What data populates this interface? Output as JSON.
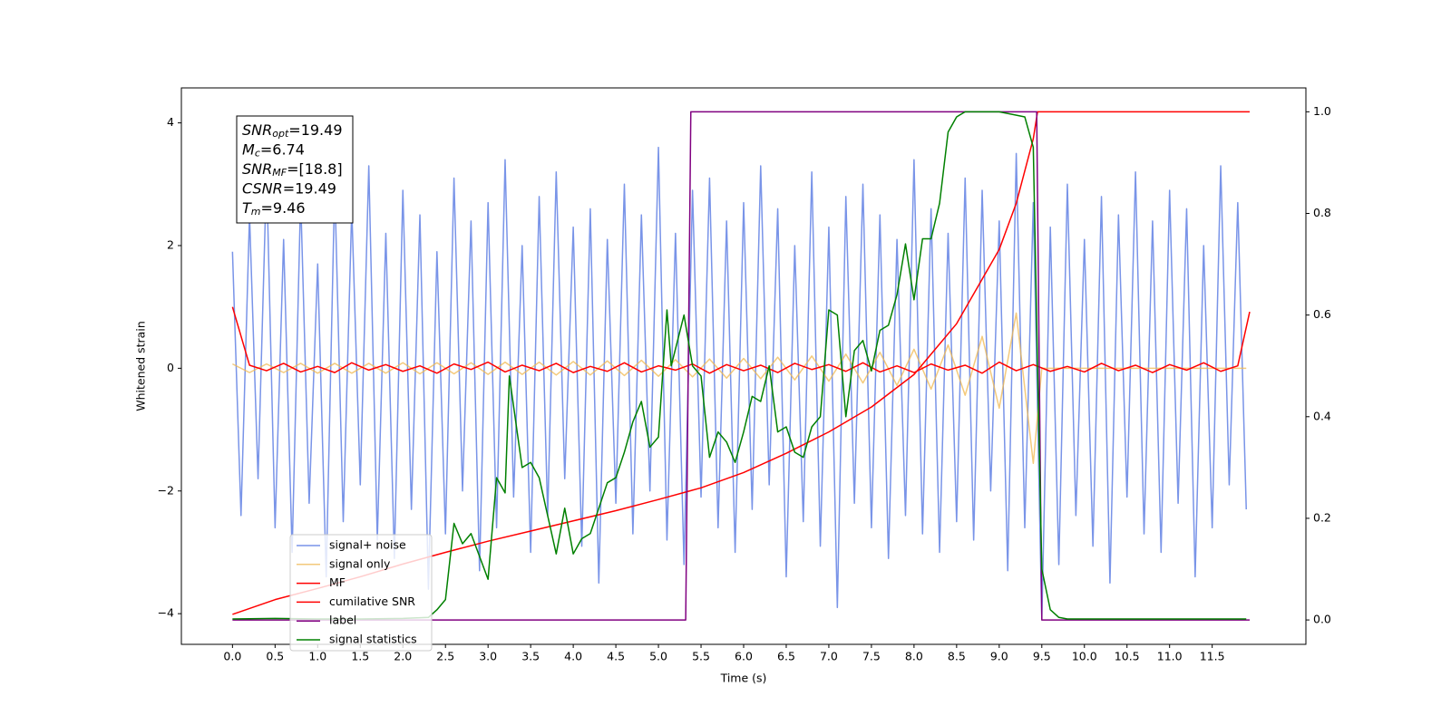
{
  "chart_data": {
    "type": "line",
    "xlabel": "Time (s)",
    "ylabel": "Whitened strain",
    "xlim": [
      -0.6,
      12.6
    ],
    "ylim": [
      -4.5,
      4.57
    ],
    "y2lim": [
      -0.048,
      1.047
    ],
    "xticks": [
      {
        "value": 0,
        "label": "0.0"
      },
      {
        "value": 0.5,
        "label": "0.5"
      },
      {
        "value": 1,
        "label": "1.0"
      },
      {
        "value": 1.5,
        "label": "1.5"
      },
      {
        "value": 2,
        "label": "2.0"
      },
      {
        "value": 2.5,
        "label": "2.5"
      },
      {
        "value": 3,
        "label": "3.0"
      },
      {
        "value": 3.5,
        "label": "3.5"
      },
      {
        "value": 4,
        "label": "4.0"
      },
      {
        "value": 4.5,
        "label": "4.5"
      },
      {
        "value": 5,
        "label": "5.0"
      },
      {
        "value": 5.5,
        "label": "5.5"
      },
      {
        "value": 6,
        "label": "6.0"
      },
      {
        "value": 6.5,
        "label": "6.5"
      },
      {
        "value": 7,
        "label": "7.0"
      },
      {
        "value": 7.5,
        "label": "7.5"
      },
      {
        "value": 8,
        "label": "8.0"
      },
      {
        "value": 8.5,
        "label": "8.5"
      },
      {
        "value": 9,
        "label": "9.0"
      },
      {
        "value": 9.5,
        "label": "9.5"
      },
      {
        "value": 10,
        "label": "10.0"
      },
      {
        "value": 10.5,
        "label": "10.5"
      },
      {
        "value": 11,
        "label": "11.0"
      },
      {
        "value": 11.5,
        "label": "11.5"
      }
    ],
    "yticks": [
      {
        "value": -4,
        "label": "−4"
      },
      {
        "value": -2,
        "label": "−2"
      },
      0,
      2,
      4
    ],
    "y2ticks": [
      {
        "value": 0,
        "label": "0.0"
      },
      {
        "value": 0.2,
        "label": "0.2"
      },
      {
        "value": 0.4,
        "label": "0.4"
      },
      {
        "value": 0.6,
        "label": "0.6"
      },
      {
        "value": 0.8,
        "label": "0.8"
      },
      {
        "value": 1,
        "label": "1.0"
      }
    ],
    "grid": false,
    "legend": "lower left",
    "annotation": [
      {
        "name": "SNR",
        "sub": "opt",
        "text": "=19.49"
      },
      {
        "name": "M",
        "sub": "c",
        "text": "=6.74"
      },
      {
        "name": "SNR",
        "sub": "MF",
        "text": "=[18.8]"
      },
      {
        "name": "CSNR",
        "text": "=19.49"
      },
      {
        "name": "T",
        "sub": "m",
        "text": "=9.46"
      }
    ],
    "series": [
      {
        "name": "signal+ noise",
        "color": "#7994e8",
        "axis": "y",
        "x": [
          0,
          0.1,
          0.2,
          0.3,
          0.4,
          0.5,
          0.6,
          0.7,
          0.8,
          0.9,
          1,
          1.1,
          1.2,
          1.3,
          1.4,
          1.5,
          1.6,
          1.7,
          1.8,
          1.9,
          2,
          2.1,
          2.2,
          2.3,
          2.4,
          2.5,
          2.6,
          2.7,
          2.8,
          2.9,
          3,
          3.1,
          3.2,
          3.3,
          3.4,
          3.5,
          3.6,
          3.7,
          3.8,
          3.9,
          4,
          4.1,
          4.2,
          4.3,
          4.4,
          4.5,
          4.6,
          4.7,
          4.8,
          4.9,
          5,
          5.1,
          5.2,
          5.3,
          5.4,
          5.5,
          5.6,
          5.7,
          5.8,
          5.9,
          6,
          6.1,
          6.2,
          6.3,
          6.4,
          6.5,
          6.6,
          6.7,
          6.8,
          6.9,
          7,
          7.1,
          7.2,
          7.3,
          7.4,
          7.5,
          7.6,
          7.7,
          7.8,
          7.9,
          8,
          8.1,
          8.2,
          8.3,
          8.4,
          8.5,
          8.6,
          8.7,
          8.8,
          8.9,
          9,
          9.1,
          9.2,
          9.3,
          9.4,
          9.5,
          9.6,
          9.7,
          9.8,
          9.9,
          10,
          10.1,
          10.2,
          10.3,
          10.4,
          10.5,
          10.6,
          10.7,
          10.8,
          10.9,
          11,
          11.1,
          11.2,
          11.3,
          11.4,
          11.5,
          11.6,
          11.7,
          11.8,
          11.9
        ],
        "values": [
          1.9,
          -2.4,
          2.5,
          -1.8,
          3.2,
          -2.6,
          2.1,
          -3.0,
          2.8,
          -2.2,
          1.7,
          -3.4,
          3.0,
          -2.5,
          2.6,
          -1.9,
          3.3,
          -2.8,
          2.2,
          -3.1,
          2.9,
          -2.3,
          2.5,
          -3.6,
          1.9,
          -2.7,
          3.1,
          -2.0,
          2.4,
          -3.3,
          2.7,
          -2.6,
          3.4,
          -2.1,
          2.0,
          -3.0,
          2.8,
          -2.4,
          3.2,
          -1.8,
          2.3,
          -2.9,
          2.6,
          -3.5,
          2.1,
          -2.2,
          3.0,
          -2.7,
          2.5,
          -2.0,
          3.6,
          -2.8,
          2.2,
          -3.2,
          2.9,
          -2.1,
          3.1,
          -2.6,
          2.4,
          -3.0,
          2.7,
          -2.3,
          3.3,
          -1.9,
          2.6,
          -3.4,
          2.0,
          -2.5,
          3.2,
          -2.9,
          2.3,
          -3.9,
          2.8,
          -2.2,
          3.0,
          -2.6,
          2.5,
          -3.1,
          2.1,
          -2.4,
          3.4,
          -2.7,
          2.6,
          -3.0,
          2.2,
          -2.5,
          3.1,
          -2.8,
          2.9,
          -2.0,
          2.4,
          -3.3,
          3.5,
          -2.6,
          2.7,
          -4.1,
          2.3,
          -3.2,
          3.0,
          -2.4,
          2.1,
          -2.9,
          2.8,
          -3.5,
          2.5,
          -2.1,
          3.2,
          -2.7,
          2.4,
          -3.0,
          2.9,
          -2.2,
          2.6,
          -3.4,
          2.0,
          -2.6,
          3.3,
          -1.9,
          2.7,
          -2.3
        ]
      },
      {
        "name": "signal only",
        "color": "#f0b850",
        "axis": "y",
        "x": [
          0,
          0.2,
          0.4,
          0.6,
          0.8,
          1,
          1.2,
          1.4,
          1.6,
          1.8,
          2,
          2.2,
          2.4,
          2.6,
          2.8,
          3,
          3.2,
          3.4,
          3.6,
          3.8,
          4,
          4.2,
          4.4,
          4.6,
          4.8,
          5,
          5.2,
          5.4,
          5.6,
          5.8,
          6,
          6.2,
          6.4,
          6.6,
          6.8,
          7,
          7.2,
          7.4,
          7.6,
          7.8,
          8,
          8.2,
          8.4,
          8.6,
          8.8,
          9,
          9.2,
          9.4,
          9.5,
          11.9
        ],
        "values": [
          0.07,
          -0.07,
          0.07,
          -0.07,
          0.08,
          -0.08,
          0.08,
          -0.08,
          0.08,
          -0.08,
          0.09,
          -0.09,
          0.09,
          -0.09,
          0.09,
          -0.1,
          0.1,
          -0.1,
          0.1,
          -0.11,
          0.11,
          -0.11,
          0.12,
          -0.12,
          0.13,
          -0.13,
          0.14,
          -0.14,
          0.15,
          -0.16,
          0.16,
          -0.17,
          0.18,
          -0.19,
          0.2,
          -0.21,
          0.23,
          -0.24,
          0.26,
          -0.28,
          0.31,
          -0.34,
          0.38,
          -0.44,
          0.52,
          -0.65,
          0.9,
          -1.55,
          0,
          0
        ]
      },
      {
        "name": "MF",
        "color": "red",
        "axis": "y",
        "x": [
          0,
          0.2,
          0.4,
          0.6,
          0.8,
          1,
          1.2,
          1.4,
          1.6,
          1.8,
          2,
          2.2,
          2.4,
          2.6,
          2.8,
          3,
          3.2,
          3.4,
          3.6,
          3.8,
          4,
          4.2,
          4.4,
          4.6,
          4.8,
          5,
          5.2,
          5.4,
          5.6,
          5.8,
          6,
          6.2,
          6.4,
          6.6,
          6.8,
          7,
          7.2,
          7.4,
          7.6,
          7.8,
          8,
          8.2,
          8.4,
          8.6,
          8.8,
          9,
          9.2,
          9.4,
          9.6,
          9.8,
          10,
          10.2,
          10.4,
          10.6,
          10.8,
          11,
          11.2,
          11.4,
          11.6,
          11.8,
          11.94
        ],
        "values": [
          1.0,
          0.05,
          -0.04,
          0.08,
          -0.06,
          0.03,
          -0.07,
          0.09,
          -0.03,
          0.06,
          -0.05,
          0.04,
          -0.08,
          0.07,
          -0.02,
          0.1,
          -0.06,
          0.05,
          -0.04,
          0.08,
          -0.07,
          0.03,
          -0.05,
          0.09,
          -0.06,
          0.04,
          -0.03,
          0.07,
          -0.08,
          0.06,
          -0.04,
          0.05,
          -0.07,
          0.08,
          -0.02,
          0.06,
          -0.05,
          0.09,
          -0.06,
          0.04,
          -0.07,
          0.07,
          -0.03,
          0.05,
          -0.08,
          0.1,
          -0.04,
          0.06,
          -0.05,
          0.03,
          -0.06,
          0.08,
          -0.04,
          0.05,
          -0.07,
          0.06,
          -0.03,
          0.09,
          -0.05,
          0.04,
          0.92
        ]
      },
      {
        "name": "cumilative SNR",
        "color": "red",
        "axis": "y2",
        "x": [
          0,
          0.5,
          1,
          1.5,
          2,
          2.5,
          3,
          3.5,
          4,
          4.5,
          5,
          5.5,
          6,
          6.5,
          7,
          7.5,
          8,
          8.5,
          9,
          9.2,
          9.4,
          9.45,
          11.94
        ],
        "values": [
          0.011,
          0.04,
          0.062,
          0.085,
          0.11,
          0.133,
          0.155,
          0.175,
          0.195,
          0.215,
          0.237,
          0.26,
          0.29,
          0.328,
          0.37,
          0.419,
          0.483,
          0.583,
          0.729,
          0.82,
          0.947,
          1.0,
          1.0
        ]
      },
      {
        "name": "label",
        "color": "purple",
        "axis": "y2",
        "x": [
          0,
          5.32,
          5.38,
          9.44,
          9.5,
          11.94
        ],
        "values": [
          0,
          0,
          1,
          1,
          0,
          0
        ]
      },
      {
        "name": "signal statistics",
        "color": "green",
        "axis": "y2",
        "x": [
          0,
          0.5,
          1,
          1.5,
          2,
          2.3,
          2.4,
          2.5,
          2.6,
          2.7,
          2.8,
          3.0,
          3.1,
          3.2,
          3.25,
          3.4,
          3.5,
          3.6,
          3.8,
          3.9,
          4.0,
          4.1,
          4.2,
          4.4,
          4.5,
          4.6,
          4.7,
          4.8,
          4.9,
          5.0,
          5.1,
          5.15,
          5.3,
          5.4,
          5.5,
          5.6,
          5.7,
          5.8,
          5.9,
          6.0,
          6.1,
          6.2,
          6.3,
          6.4,
          6.5,
          6.6,
          6.7,
          6.8,
          6.9,
          7.0,
          7.1,
          7.2,
          7.3,
          7.4,
          7.5,
          7.6,
          7.7,
          7.8,
          7.9,
          8.0,
          8.1,
          8.2,
          8.3,
          8.4,
          8.5,
          8.6,
          9.0,
          9.3,
          9.4,
          9.45,
          9.5,
          9.6,
          9.7,
          9.8,
          11.9
        ],
        "values": [
          0.002,
          0.003,
          0.002,
          0.002,
          0.003,
          0.005,
          0.02,
          0.04,
          0.19,
          0.15,
          0.17,
          0.08,
          0.28,
          0.25,
          0.48,
          0.3,
          0.31,
          0.28,
          0.13,
          0.22,
          0.13,
          0.16,
          0.17,
          0.27,
          0.28,
          0.33,
          0.39,
          0.43,
          0.34,
          0.36,
          0.61,
          0.5,
          0.6,
          0.5,
          0.48,
          0.32,
          0.37,
          0.35,
          0.31,
          0.37,
          0.44,
          0.43,
          0.5,
          0.37,
          0.38,
          0.33,
          0.32,
          0.38,
          0.4,
          0.61,
          0.6,
          0.4,
          0.53,
          0.55,
          0.49,
          0.57,
          0.58,
          0.64,
          0.74,
          0.63,
          0.75,
          0.75,
          0.82,
          0.96,
          0.99,
          1.0,
          1.0,
          0.99,
          0.93,
          0.5,
          0.1,
          0.02,
          0.005,
          0.002,
          0.002
        ]
      }
    ]
  }
}
